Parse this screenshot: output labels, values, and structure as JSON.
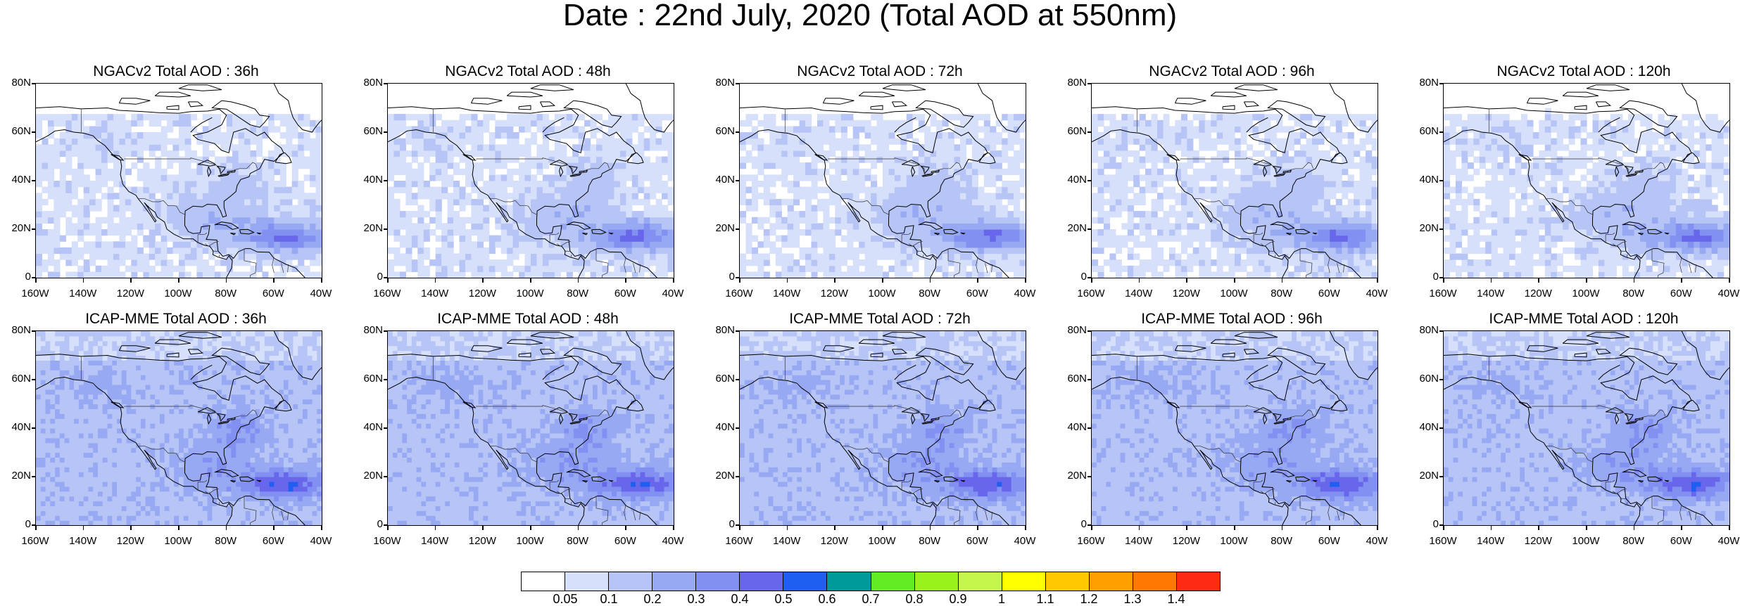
{
  "title": "Date : 22nd July, 2020 (Total AOD at 550nm)",
  "panels": [
    {
      "title": "NGACv2 Total AOD : 36h",
      "row": 0,
      "col": 0
    },
    {
      "title": "NGACv2 Total AOD : 48h",
      "row": 0,
      "col": 1
    },
    {
      "title": "NGACv2 Total AOD : 72h",
      "row": 0,
      "col": 2
    },
    {
      "title": "NGACv2 Total AOD : 96h",
      "row": 0,
      "col": 3
    },
    {
      "title": "NGACv2 Total AOD : 120h",
      "row": 0,
      "col": 4
    },
    {
      "title": "ICAP-MME Total AOD : 36h",
      "row": 1,
      "col": 0
    },
    {
      "title": "ICAP-MME Total AOD : 48h",
      "row": 1,
      "col": 1
    },
    {
      "title": "ICAP-MME Total AOD : 72h",
      "row": 1,
      "col": 2
    },
    {
      "title": "ICAP-MME Total AOD : 96h",
      "row": 1,
      "col": 3
    },
    {
      "title": "ICAP-MME Total AOD : 120h",
      "row": 1,
      "col": 4
    }
  ],
  "axes": {
    "y_ticks": [
      "80N",
      "60N",
      "40N",
      "20N",
      "0"
    ],
    "x_ticks": [
      "160W",
      "140W",
      "120W",
      "100W",
      "80W",
      "60W",
      "40W"
    ],
    "lat_range": [
      0,
      80
    ],
    "lon_range": [
      -160,
      -40
    ]
  },
  "colorbar": {
    "colors": [
      "#ffffff",
      "#d7e0fa",
      "#b6c4f6",
      "#98a9f4",
      "#8290f1",
      "#6866ea",
      "#1e5ff2",
      "#009a9a",
      "#62ec23",
      "#9af21b",
      "#c5f64a",
      "#ffff00",
      "#ffc800",
      "#ffa000",
      "#ff7800",
      "#ff2a14"
    ],
    "labels": [
      "0.05",
      "0.1",
      "0.2",
      "0.3",
      "0.4",
      "0.5",
      "0.6",
      "0.7",
      "0.8",
      "0.9",
      "1",
      "1.1",
      "1.2",
      "1.3",
      "1.4"
    ]
  }
}
